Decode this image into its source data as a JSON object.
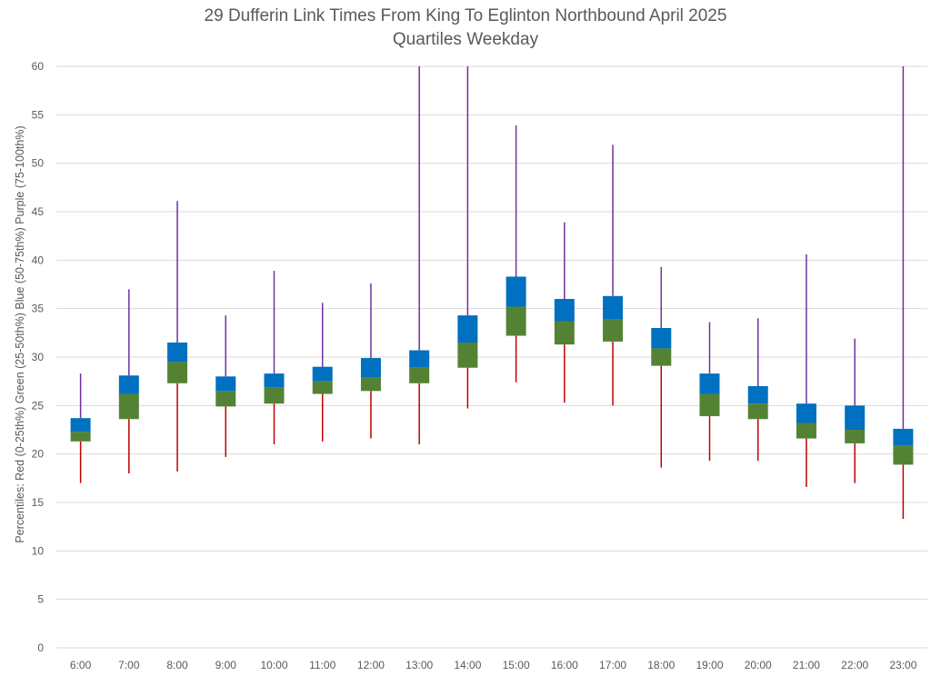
{
  "chart_data": {
    "type": "box",
    "title": "29 Dufferin Link Times From King To Eglinton Northbound April 2025",
    "subtitle": "Quartiles Weekday",
    "ylabel": "Percentiles:  Red (0-25th%)  Green (25-50th%)  Blue (50-75th%)  Purple (75-100th%)",
    "xlabel": "",
    "ylim": [
      0,
      60
    ],
    "yticks": [
      0,
      5,
      10,
      15,
      20,
      25,
      30,
      35,
      40,
      45,
      50,
      55,
      60
    ],
    "grid": true,
    "categories": [
      "6:00",
      "7:00",
      "8:00",
      "9:00",
      "10:00",
      "11:00",
      "12:00",
      "13:00",
      "14:00",
      "15:00",
      "16:00",
      "17:00",
      "18:00",
      "19:00",
      "20:00",
      "21:00",
      "22:00",
      "23:00"
    ],
    "min": [
      17.0,
      18.0,
      18.2,
      19.7,
      21.0,
      21.3,
      21.6,
      21.0,
      24.7,
      27.4,
      25.3,
      25.0,
      18.6,
      19.3,
      19.3,
      16.6,
      17.0,
      13.3
    ],
    "q1": [
      21.3,
      23.6,
      27.3,
      24.9,
      25.2,
      26.2,
      26.5,
      27.3,
      28.9,
      32.2,
      31.3,
      31.6,
      29.1,
      23.9,
      23.6,
      21.6,
      21.1,
      18.9
    ],
    "median": [
      22.3,
      26.2,
      29.5,
      26.5,
      26.9,
      27.5,
      27.9,
      28.9,
      31.5,
      35.2,
      33.7,
      33.9,
      30.9,
      26.2,
      25.2,
      23.2,
      22.5,
      20.9
    ],
    "q3": [
      23.7,
      28.1,
      31.5,
      28.0,
      28.3,
      29.0,
      29.9,
      30.7,
      34.3,
      38.3,
      36.0,
      36.3,
      33.0,
      28.3,
      27.0,
      25.2,
      25.0,
      22.6
    ],
    "max": [
      28.3,
      37.0,
      46.1,
      34.3,
      38.9,
      35.6,
      37.6,
      60.0,
      60.0,
      53.9,
      43.9,
      51.9,
      39.3,
      33.6,
      34.0,
      40.6,
      31.9,
      60.0
    ],
    "colors": {
      "lower_whisker": "#c00000",
      "lower_box": "#548235",
      "upper_box": "#0070c0",
      "upper_whisker": "#7030a0",
      "grid": "#d9d9d9",
      "text": "#595959"
    }
  }
}
